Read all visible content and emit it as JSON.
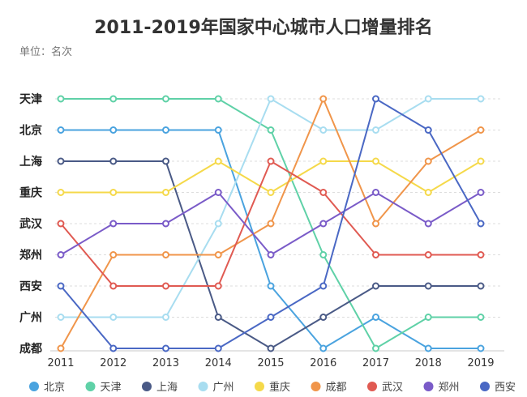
{
  "title": "2011-2019年国家中心城市人口增量排名",
  "unit_label": "单位：名次",
  "chart_data": {
    "type": "line",
    "title": "2011-2019年国家中心城市人口增量排名",
    "subtitle": "单位：名次",
    "x": [
      "2011",
      "2012",
      "2013",
      "2014",
      "2015",
      "2016",
      "2017",
      "2018",
      "2019"
    ],
    "y_categories": [
      "天津",
      "北京",
      "上海",
      "重庆",
      "武汉",
      "郑州",
      "西安",
      "广州",
      "成都"
    ],
    "ylim": [
      1,
      9
    ],
    "y_inverted": true,
    "grid": "horizontal-dashed",
    "legend_position": "bottom",
    "series": [
      {
        "name": "北京",
        "color": "#4aa3df",
        "values": [
          2,
          2,
          2,
          2,
          7,
          9,
          8,
          9,
          9
        ]
      },
      {
        "name": "天津",
        "color": "#5fd1a7",
        "values": [
          1,
          1,
          1,
          1,
          2,
          6,
          9,
          8,
          8
        ]
      },
      {
        "name": "上海",
        "color": "#4a5a86",
        "values": [
          3,
          3,
          3,
          8,
          9,
          8,
          7,
          7,
          7
        ]
      },
      {
        "name": "广州",
        "color": "#a8ddf0",
        "values": [
          8,
          8,
          8,
          5,
          1,
          2,
          2,
          1,
          1
        ]
      },
      {
        "name": "重庆",
        "color": "#f5d94a",
        "values": [
          4,
          4,
          4,
          3,
          4,
          3,
          3,
          4,
          3
        ]
      },
      {
        "name": "成都",
        "color": "#f0954a",
        "values": [
          9,
          6,
          6,
          6,
          5,
          1,
          5,
          3,
          2
        ]
      },
      {
        "name": "武汉",
        "color": "#e05a52",
        "values": [
          5,
          7,
          7,
          7,
          3,
          4,
          6,
          6,
          6
        ]
      },
      {
        "name": "郑州",
        "color": "#7a5bc8",
        "values": [
          6,
          5,
          5,
          4,
          6,
          5,
          4,
          5,
          4
        ]
      },
      {
        "name": "西安",
        "color": "#4a68c4",
        "values": [
          7,
          9,
          9,
          9,
          8,
          7,
          1,
          2,
          5
        ]
      }
    ]
  }
}
